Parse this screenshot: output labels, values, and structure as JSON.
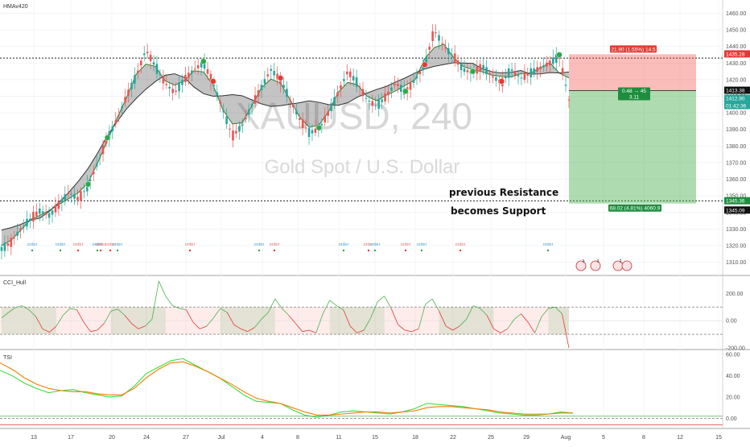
{
  "chart_data": [
    {
      "type": "candlestick",
      "indicator_label": "HMAv420",
      "watermark_symbol": "XAUUSD, 240",
      "watermark_name": "Gold Spot / U.S. Dollar",
      "annotations": [
        "previous Resistance",
        "becomes Support"
      ],
      "x_tick_labels": [
        "13",
        "17",
        "20",
        "24",
        "27",
        "Jul",
        "4",
        "8",
        "11",
        "15",
        "18",
        "22",
        "25",
        "29",
        "Aug",
        "5",
        "8",
        "12",
        "15"
      ],
      "y_ticks": [
        1310,
        1320,
        1330,
        1340,
        1350,
        1360,
        1370,
        1380,
        1390,
        1400,
        1410,
        1420,
        1430,
        1440,
        1450,
        1460
      ],
      "ylim": [
        1303,
        1468
      ],
      "price_path": [
        1318,
        1322,
        1330,
        1336,
        1341,
        1338,
        1345,
        1352,
        1348,
        1356,
        1370,
        1384,
        1396,
        1410,
        1422,
        1438,
        1428,
        1418,
        1412,
        1420,
        1426,
        1430,
        1418,
        1402,
        1386,
        1392,
        1404,
        1415,
        1426,
        1420,
        1408,
        1396,
        1388,
        1390,
        1400,
        1412,
        1425,
        1418,
        1408,
        1404,
        1410,
        1418,
        1412,
        1420,
        1428,
        1450,
        1440,
        1434,
        1426,
        1424,
        1428,
        1422,
        1418,
        1426,
        1421,
        1424,
        1427,
        1430,
        1434,
        1408
      ],
      "horizontal_levels": [
        1433,
        1347
      ],
      "price_tags": [
        {
          "text": "1435.28",
          "color": "#e53935"
        },
        {
          "text": "1413.38",
          "color": "#111111"
        },
        {
          "text": "1412.90",
          "color": "#26a69a"
        },
        {
          "text": "01:42:36",
          "color": "#26a69a"
        },
        {
          "text": "1345.36",
          "color": "#1e8e3e"
        },
        {
          "text": "1345.09",
          "color": "#111111"
        }
      ],
      "position_tool": {
        "entry": 1413.4,
        "stop": 1435.3,
        "target": 1345.36,
        "stop_label": "21.90 (1.55%) 14.5",
        "entry_label_line1": "0.48 → 45",
        "entry_label_line2": "3.11",
        "target_label": "68.02 (4.81%) 4060.9"
      },
      "order_labels": [
        "order",
        "order",
        "order",
        "order",
        "order",
        "order",
        "order",
        "order",
        "order",
        "order",
        "order",
        "order",
        "order",
        "order",
        "order",
        "order",
        "order"
      ],
      "event_badges": [
        "3",
        "3",
        "2"
      ]
    },
    {
      "type": "line",
      "indicator_label": "CCI_Hull",
      "y_ticks": [
        200,
        0,
        -200
      ],
      "y_tick_labels": [
        "200.00",
        "0.00",
        "-200.00"
      ],
      "ylim": [
        -200,
        320
      ],
      "bands": [
        100,
        -100
      ],
      "values": [
        20,
        60,
        95,
        110,
        80,
        30,
        -60,
        -85,
        -40,
        40,
        90,
        80,
        -10,
        -80,
        -70,
        -20,
        70,
        85,
        40,
        -20,
        -60,
        -40,
        10,
        290,
        180,
        110,
        90,
        80,
        -10,
        -60,
        -40,
        20,
        90,
        60,
        -30,
        -60,
        -80,
        -50,
        10,
        60,
        160,
        90,
        40,
        -20,
        -80,
        -70,
        -90,
        50,
        150,
        110,
        80,
        -40,
        -90,
        -70,
        20,
        140,
        180,
        90,
        -30,
        -70,
        -80,
        -60,
        120,
        160,
        70,
        -40,
        -70,
        -40,
        10,
        110,
        90,
        40,
        -60,
        -90,
        -60,
        10,
        50,
        -10,
        -90,
        30,
        90,
        100,
        50,
        -200
      ]
    },
    {
      "type": "line",
      "indicator_label": "TSI",
      "y_ticks": [
        60,
        40,
        20,
        0
      ],
      "y_tick_labels": [
        "60.00",
        "40.00",
        "20.00",
        "0.00"
      ],
      "ylim": [
        -8,
        63
      ],
      "series": [
        {
          "color": "#3ddc3d",
          "values": [
            45,
            40,
            33,
            28,
            24,
            26,
            27,
            24,
            22,
            20,
            21,
            30,
            42,
            48,
            54,
            56,
            50,
            44,
            38,
            30,
            22,
            16,
            15,
            14,
            8,
            3,
            1,
            3,
            6,
            7,
            6,
            5,
            4,
            6,
            9,
            14,
            13,
            12,
            11,
            9,
            7,
            5,
            4,
            3,
            3,
            4,
            6,
            5
          ]
        },
        {
          "color": "#f57c00",
          "values": [
            52,
            46,
            38,
            32,
            28,
            26,
            25,
            25,
            23,
            22,
            22,
            28,
            38,
            46,
            52,
            53,
            49,
            44,
            38,
            32,
            25,
            19,
            16,
            14,
            10,
            6,
            3,
            3,
            4,
            5,
            6,
            6,
            5,
            6,
            7,
            10,
            11,
            11,
            10,
            9,
            8,
            6,
            5,
            4,
            4,
            4,
            5,
            5
          ]
        }
      ]
    }
  ]
}
